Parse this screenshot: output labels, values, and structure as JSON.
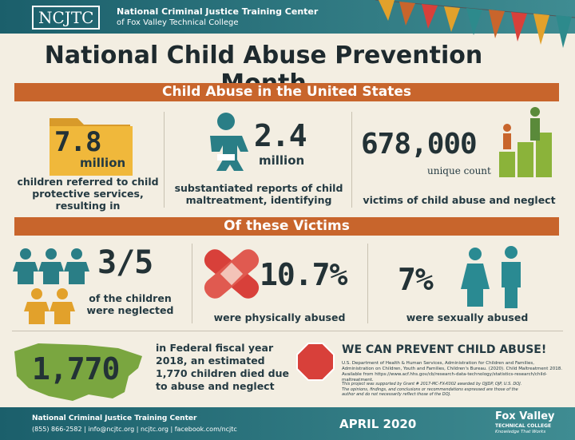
{
  "header": {
    "logo": "NCJTC",
    "org_name": "National Criminal Justice Training Center",
    "org_sub": "of Fox Valley Technical College"
  },
  "title": "National Child Abuse Prevention Month",
  "section1": {
    "heading": "Child Abuse in the United States",
    "stats": [
      {
        "value": "7.8",
        "unit": "million",
        "caption": "children referred to child protective services, resulting in"
      },
      {
        "value": "2.4",
        "unit": "million",
        "caption": "substantiated reports of child maltreatment, identifying"
      },
      {
        "value": "678,000",
        "unit": "unique count",
        "caption": "victims of child abuse and neglect"
      }
    ]
  },
  "section2": {
    "heading": "Of these Victims",
    "stats": [
      {
        "value": "3/5",
        "caption": "of the children were neglected"
      },
      {
        "value": "10.7%",
        "caption": "were physically abused"
      },
      {
        "value": "7%",
        "caption": "were sexually abused"
      }
    ]
  },
  "deaths": {
    "value": "1,770",
    "text": "in Federal fiscal year 2018, an estimated 1,770 children died due to abuse and neglect"
  },
  "prevent": {
    "heading": "WE CAN PREVENT CHILD ABUSE!",
    "source": "U.S. Department of Health & Human Services, Administration for Children and Families, Administration on Children, Youth and Families, Children's Bureau. (2020). Child Maltreatment 2018. Available from https://www.acf.hhs.gov/cb/research-data-technology/statistics-research/child-maltreatment.",
    "note": "This project was supported by Grant # 2017-MC-FX-K002 awarded by OJJDP, OJP, U.S. DOJ. The opinions, findings, and conclusions or recommendations expressed are those of the author and do not necessarily reflect those of the DOJ."
  },
  "footer": {
    "org": "National Criminal Justice Training Center",
    "contact": "(855) 866-2582 | info@ncjtc.org | ncjtc.org | facebook.com/ncjtc",
    "date": "APRIL 2020",
    "logo": "Fox Valley",
    "logo_sub": "TECHNICAL COLLEGE",
    "tagline": "Knowledge That Works"
  }
}
